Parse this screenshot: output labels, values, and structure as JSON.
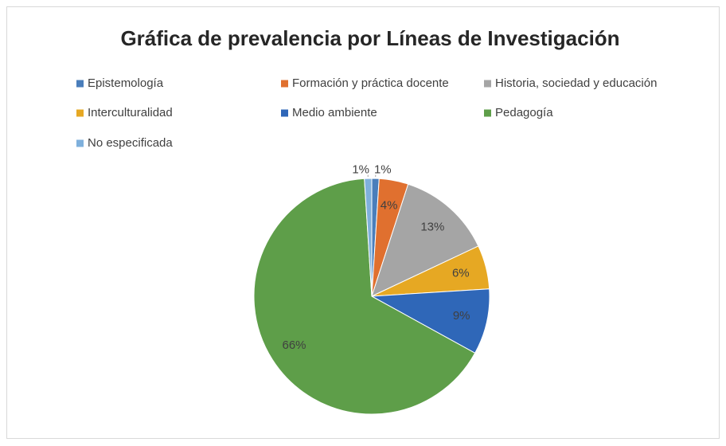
{
  "chart_data": {
    "type": "pie",
    "title": "Gráfica de prevalencia  por Líneas de Investigación",
    "categories": [
      "Epistemología",
      "Formación y práctica docente",
      "Historia, sociedad y educación",
      "Interculturalidad",
      "Medio ambiente",
      "Pedagogía",
      "No especificada"
    ],
    "values": [
      1,
      4,
      13,
      6,
      9,
      66,
      1
    ],
    "value_labels": [
      "1%",
      "4%",
      "13%",
      "6%",
      "9%",
      "66%",
      "1%"
    ],
    "colors": [
      "#4a7ebb",
      "#e0702f",
      "#a5a5a5",
      "#e6a823",
      "#2f67b8",
      "#5e9e49",
      "#7fb0dc"
    ],
    "legend": "top"
  }
}
